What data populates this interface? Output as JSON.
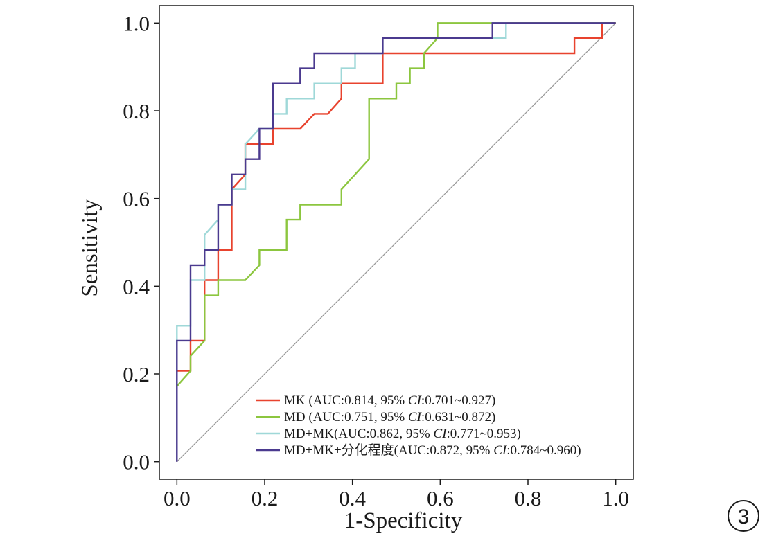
{
  "panel_label": "3",
  "chart_data": {
    "type": "line",
    "title": "",
    "xlabel": "1-Specificity",
    "ylabel": "Sensitivity",
    "xlim": [
      -0.04,
      1.04
    ],
    "ylim": [
      -0.04,
      1.04
    ],
    "x_ticks": [
      0.0,
      0.2,
      0.4,
      0.6,
      0.8,
      1.0
    ],
    "y_ticks": [
      0.0,
      0.2,
      0.4,
      0.6,
      0.8,
      1.0
    ],
    "x_tick_labels": [
      "0.0",
      "0.2",
      "0.4",
      "0.6",
      "0.8",
      "1.0"
    ],
    "y_tick_labels": [
      "0.0",
      "0.2",
      "0.4",
      "0.6",
      "0.8",
      "1.0"
    ],
    "grid": false,
    "legend_position": "bottom-right",
    "reference_line": {
      "from": [
        0,
        0
      ],
      "to": [
        1,
        1
      ],
      "color": "#999999"
    },
    "series": [
      {
        "name": "MK",
        "label_prefix": "MK (AUC:0.814, 95% ",
        "label_ci": "CI",
        "label_suffix": ":0.701~0.927)",
        "color": "#e8432e",
        "points": [
          [
            0,
            0
          ],
          [
            0,
            0.207
          ],
          [
            0.031,
            0.207
          ],
          [
            0.031,
            0.276
          ],
          [
            0.063,
            0.276
          ],
          [
            0.063,
            0.414
          ],
          [
            0.094,
            0.414
          ],
          [
            0.094,
            0.483
          ],
          [
            0.125,
            0.483
          ],
          [
            0.125,
            0.621
          ],
          [
            0.156,
            0.655
          ],
          [
            0.156,
            0.724
          ],
          [
            0.219,
            0.724
          ],
          [
            0.219,
            0.759
          ],
          [
            0.281,
            0.759
          ],
          [
            0.313,
            0.793
          ],
          [
            0.344,
            0.793
          ],
          [
            0.375,
            0.828
          ],
          [
            0.375,
            0.862
          ],
          [
            0.469,
            0.862
          ],
          [
            0.469,
            0.931
          ],
          [
            0.906,
            0.931
          ],
          [
            0.906,
            0.966
          ],
          [
            0.969,
            0.966
          ],
          [
            0.969,
            1.0
          ],
          [
            1.0,
            1.0
          ]
        ]
      },
      {
        "name": "MD",
        "label_prefix": "MD (AUC:0.751, 95% ",
        "label_ci": "CI",
        "label_suffix": ":0.631~0.872)",
        "color": "#8cc63f",
        "points": [
          [
            0,
            0.172
          ],
          [
            0.031,
            0.207
          ],
          [
            0.031,
            0.241
          ],
          [
            0.063,
            0.276
          ],
          [
            0.063,
            0.379
          ],
          [
            0.094,
            0.379
          ],
          [
            0.094,
            0.414
          ],
          [
            0.156,
            0.414
          ],
          [
            0.188,
            0.448
          ],
          [
            0.188,
            0.483
          ],
          [
            0.25,
            0.483
          ],
          [
            0.25,
            0.552
          ],
          [
            0.281,
            0.552
          ],
          [
            0.281,
            0.586
          ],
          [
            0.375,
            0.586
          ],
          [
            0.375,
            0.621
          ],
          [
            0.438,
            0.69
          ],
          [
            0.438,
            0.828
          ],
          [
            0.5,
            0.828
          ],
          [
            0.5,
            0.862
          ],
          [
            0.531,
            0.862
          ],
          [
            0.531,
            0.897
          ],
          [
            0.563,
            0.897
          ],
          [
            0.563,
            0.931
          ],
          [
            0.594,
            0.966
          ],
          [
            0.594,
            1.0
          ],
          [
            1.0,
            1.0
          ]
        ]
      },
      {
        "name": "MD+MK",
        "label_prefix": "MD+MK(AUC:0.862, 95% ",
        "label_ci": "CI",
        "label_suffix": ":0.771~0.953)",
        "color": "#9fd8d8",
        "points": [
          [
            0,
            0
          ],
          [
            0,
            0.31
          ],
          [
            0.031,
            0.31
          ],
          [
            0.031,
            0.414
          ],
          [
            0.063,
            0.414
          ],
          [
            0.063,
            0.517
          ],
          [
            0.094,
            0.552
          ],
          [
            0.094,
            0.586
          ],
          [
            0.125,
            0.586
          ],
          [
            0.125,
            0.621
          ],
          [
            0.156,
            0.621
          ],
          [
            0.156,
            0.724
          ],
          [
            0.188,
            0.759
          ],
          [
            0.219,
            0.759
          ],
          [
            0.219,
            0.793
          ],
          [
            0.25,
            0.793
          ],
          [
            0.25,
            0.828
          ],
          [
            0.313,
            0.828
          ],
          [
            0.313,
            0.862
          ],
          [
            0.375,
            0.862
          ],
          [
            0.375,
            0.897
          ],
          [
            0.406,
            0.897
          ],
          [
            0.406,
            0.931
          ],
          [
            0.469,
            0.931
          ],
          [
            0.469,
            0.966
          ],
          [
            0.719,
            0.966
          ],
          [
            0.719,
            1.0
          ],
          [
            0.75,
            1.0
          ],
          [
            0.75,
            0.966
          ],
          [
            0.719,
            0.966
          ]
        ]
      },
      {
        "name": "MD+MK+分化程度",
        "label_prefix": "MD+MK+分化程度(AUC:0.872, 95% ",
        "label_ci": "CI",
        "label_suffix": ":0.784~0.960)",
        "color": "#4b3a8f",
        "points": [
          [
            0,
            0
          ],
          [
            0,
            0.276
          ],
          [
            0.031,
            0.276
          ],
          [
            0.031,
            0.448
          ],
          [
            0.063,
            0.448
          ],
          [
            0.063,
            0.483
          ],
          [
            0.094,
            0.483
          ],
          [
            0.094,
            0.586
          ],
          [
            0.125,
            0.586
          ],
          [
            0.125,
            0.655
          ],
          [
            0.156,
            0.655
          ],
          [
            0.156,
            0.69
          ],
          [
            0.188,
            0.69
          ],
          [
            0.188,
            0.759
          ],
          [
            0.219,
            0.759
          ],
          [
            0.219,
            0.862
          ],
          [
            0.281,
            0.862
          ],
          [
            0.281,
            0.897
          ],
          [
            0.313,
            0.897
          ],
          [
            0.313,
            0.931
          ],
          [
            0.469,
            0.931
          ],
          [
            0.469,
            0.966
          ],
          [
            0.719,
            0.966
          ],
          [
            0.719,
            1.0
          ],
          [
            1.0,
            1.0
          ]
        ]
      }
    ]
  }
}
